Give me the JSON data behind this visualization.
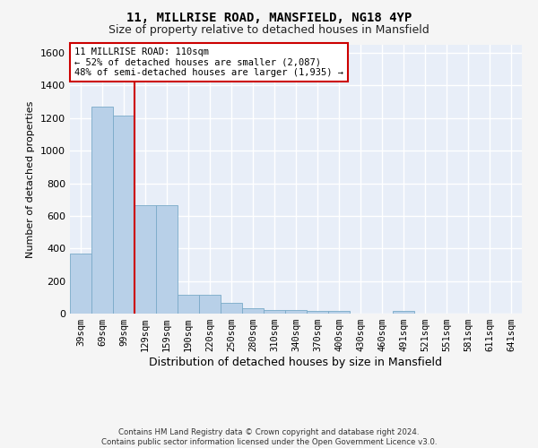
{
  "title1": "11, MILLRISE ROAD, MANSFIELD, NG18 4YP",
  "title2": "Size of property relative to detached houses in Mansfield",
  "xlabel": "Distribution of detached houses by size in Mansfield",
  "ylabel": "Number of detached properties",
  "categories": [
    "39sqm",
    "69sqm",
    "99sqm",
    "129sqm",
    "159sqm",
    "190sqm",
    "220sqm",
    "250sqm",
    "280sqm",
    "310sqm",
    "340sqm",
    "370sqm",
    "400sqm",
    "430sqm",
    "460sqm",
    "491sqm",
    "521sqm",
    "551sqm",
    "581sqm",
    "611sqm",
    "641sqm"
  ],
  "values": [
    370,
    1270,
    1215,
    665,
    665,
    115,
    115,
    65,
    35,
    20,
    20,
    15,
    15,
    0,
    0,
    15,
    0,
    0,
    0,
    0,
    0
  ],
  "bar_color": "#b8d0e8",
  "bar_edge_color": "#7aaac8",
  "annotation_line1": "11 MILLRISE ROAD: 110sqm",
  "annotation_line2": "← 52% of detached houses are smaller (2,087)",
  "annotation_line3": "48% of semi-detached houses are larger (1,935) →",
  "annotation_box_color": "#ffffff",
  "annotation_border_color": "#cc0000",
  "ylim": [
    0,
    1650
  ],
  "yticks": [
    0,
    200,
    400,
    600,
    800,
    1000,
    1200,
    1400,
    1600
  ],
  "footer1": "Contains HM Land Registry data © Crown copyright and database right 2024.",
  "footer2": "Contains public sector information licensed under the Open Government Licence v3.0.",
  "bg_color": "#f0f4fa",
  "plot_bg_color": "#e8eef8",
  "grid_color": "#ffffff",
  "red_line_color": "#cc0000"
}
